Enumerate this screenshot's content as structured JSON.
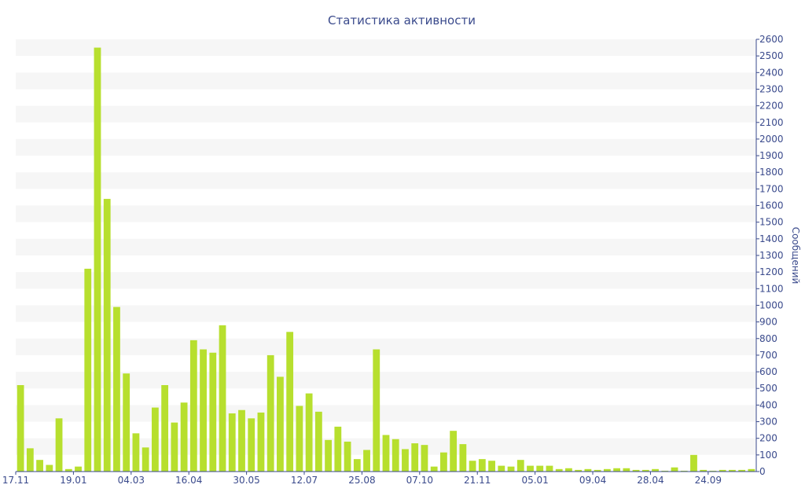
{
  "chart_data": {
    "type": "bar",
    "title": "Статистика активности",
    "xlabel": "",
    "ylabel": "Сообщений",
    "ylim": [
      0,
      2600
    ],
    "y_axis_position": "right",
    "y_ticks": [
      0,
      100,
      200,
      300,
      400,
      500,
      600,
      700,
      800,
      900,
      1000,
      1100,
      1200,
      1300,
      1400,
      1500,
      1600,
      1700,
      1800,
      1900,
      2000,
      2100,
      2200,
      2300,
      2400,
      2500,
      2600
    ],
    "grid": "alternating horizontal bands",
    "x_tick_labels": [
      "17.11",
      "19.01",
      "04.03",
      "16.04",
      "30.05",
      "12.07",
      "25.08",
      "07.10",
      "21.11",
      "05.01",
      "09.04",
      "28.04",
      "24.09"
    ],
    "x_tick_label_bar_index": [
      0,
      6,
      12,
      18,
      24,
      30,
      36,
      42,
      48,
      54,
      60,
      66,
      72
    ],
    "bar_color": "#b7df2e",
    "band_color": "#f6f6f6",
    "axis_color": "#3a4a8c",
    "title_color": "#3a4a8c",
    "values": [
      520,
      140,
      70,
      40,
      320,
      15,
      30,
      1220,
      2550,
      1640,
      990,
      590,
      230,
      145,
      385,
      520,
      295,
      415,
      790,
      735,
      715,
      880,
      350,
      370,
      320,
      355,
      700,
      570,
      840,
      395,
      470,
      360,
      190,
      270,
      180,
      75,
      130,
      735,
      220,
      195,
      135,
      170,
      160,
      30,
      115,
      245,
      165,
      65,
      75,
      65,
      35,
      30,
      70,
      35,
      35,
      35,
      15,
      20,
      10,
      15,
      10,
      15,
      20,
      20,
      10,
      10,
      15,
      5,
      25,
      5,
      100,
      10,
      5,
      10,
      10,
      10,
      15
    ]
  }
}
